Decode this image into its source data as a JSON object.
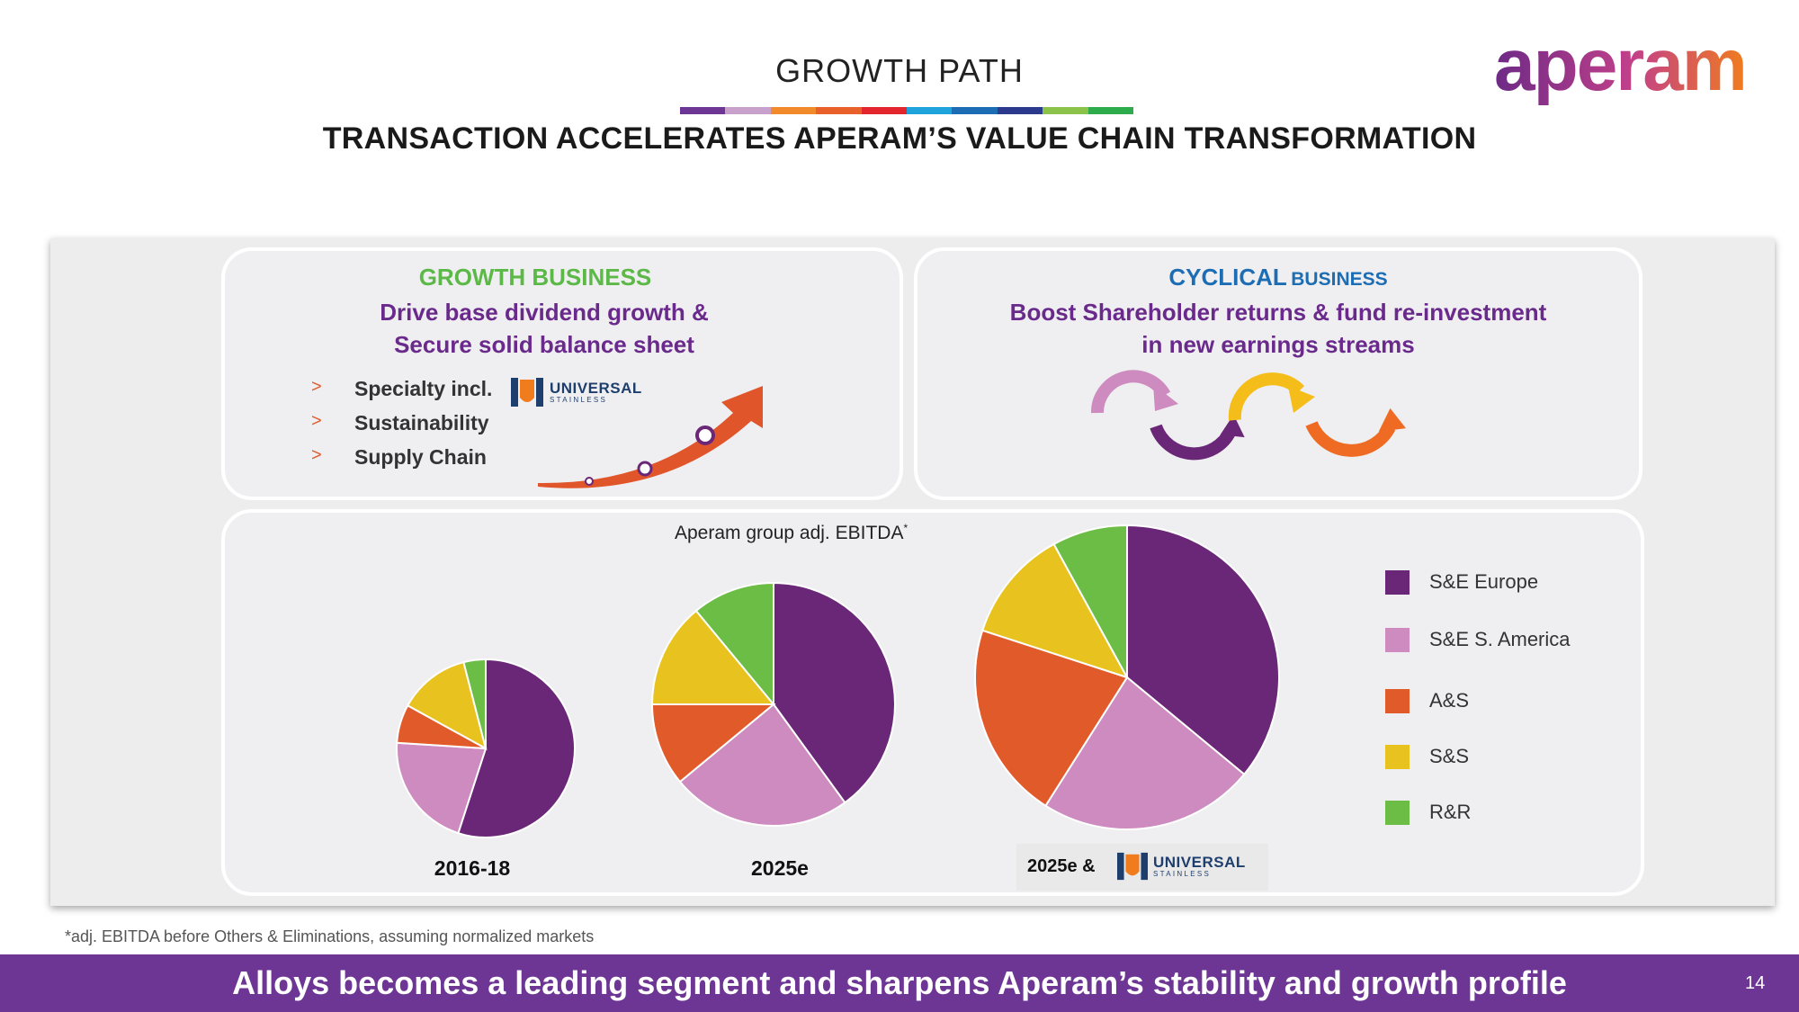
{
  "header": {
    "title": "GROWTH PATH",
    "subtitle": "TRANSACTION ACCELERATES APERAM’S VALUE CHAIN TRANSFORMATION",
    "stripe_colors": [
      "#6d3694",
      "#c8a0cc",
      "#f08a2a",
      "#e8602a",
      "#e3262e",
      "#1fa3dc",
      "#1d6db5",
      "#2b3a8c",
      "#8bc34a",
      "#2eab4a"
    ],
    "logo_text": "aperam"
  },
  "growth_card": {
    "heading": "GROWTH BUSINESS",
    "line1": "Drive base dividend growth &",
    "line2": "Secure solid balance sheet",
    "bullets": [
      "Specialty incl.",
      "Sustainability",
      "Supply Chain"
    ],
    "bullet_marker": ">"
  },
  "cyclical_card": {
    "heading_main": "CYCLICAL",
    "heading_small": "BUSINESS",
    "line1": "Boost Shareholder returns & fund re-investment",
    "line2": "in new earnings streams"
  },
  "partner_logo": {
    "name": "UNIVERSAL",
    "sub": "STAINLESS"
  },
  "chart_data": {
    "type": "pie",
    "title": "Aperam group adj. EBITDA",
    "title_marker": "*",
    "segments": [
      "S&E Europe",
      "S&E S. America",
      "A&S",
      "S&S",
      "R&R"
    ],
    "colors": [
      "#6a2777",
      "#cd8bbf",
      "#e15a2a",
      "#e8c31f",
      "#6cbd45"
    ],
    "pies": [
      {
        "label": "2016-18",
        "values": [
          55,
          21,
          7,
          13,
          4
        ]
      },
      {
        "label": "2025e",
        "values": [
          40,
          24,
          11,
          14,
          11
        ]
      },
      {
        "label": "2025e &",
        "values": [
          36,
          23,
          21,
          12,
          8
        ],
        "includes_partner_logo": true
      }
    ]
  },
  "footnote": "*adj. EBITDA before Others & Eliminations, assuming normalized markets",
  "bottom_banner": "Alloys becomes a leading segment and sharpens Aperam’s stability and growth profile",
  "page_number": "14"
}
